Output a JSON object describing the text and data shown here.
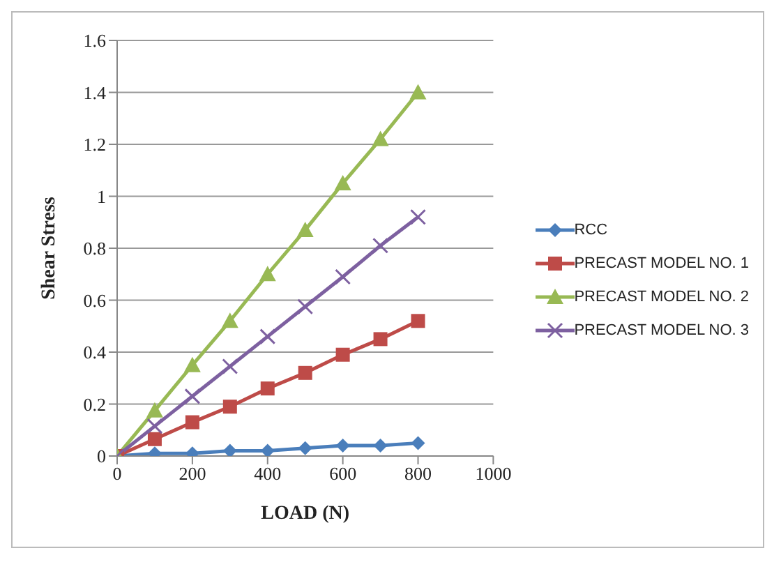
{
  "chart_data": {
    "type": "line",
    "xlabel": "LOAD (N)",
    "ylabel": "Shear Stress",
    "x": [
      0,
      100,
      200,
      300,
      400,
      500,
      600,
      700,
      800
    ],
    "series": [
      {
        "name": "RCC",
        "color": "#4a7ebb",
        "marker": "diamond",
        "values": [
          0,
          0.01,
          0.01,
          0.02,
          0.02,
          0.03,
          0.04,
          0.04,
          0.05
        ]
      },
      {
        "name": "PRECAST MODEL NO. 1",
        "color": "#be4b48",
        "marker": "square",
        "values": [
          0,
          0.065,
          0.13,
          0.19,
          0.26,
          0.32,
          0.39,
          0.45,
          0.52
        ]
      },
      {
        "name": "PRECAST MODEL NO. 2",
        "color": "#98b954",
        "marker": "triangle",
        "values": [
          0,
          0.175,
          0.35,
          0.52,
          0.7,
          0.87,
          1.05,
          1.22,
          1.4
        ]
      },
      {
        "name": "PRECAST MODEL NO. 3",
        "color": "#7d60a0",
        "marker": "cross",
        "values": [
          0,
          0.115,
          0.23,
          0.345,
          0.46,
          0.575,
          0.69,
          0.81,
          0.92
        ]
      }
    ],
    "xlim": [
      0,
      1000
    ],
    "xticks": [
      0,
      200,
      400,
      600,
      800,
      1000
    ],
    "ylim": [
      0,
      1.6
    ],
    "yticks": [
      0,
      0.2,
      0.4,
      0.6,
      0.8,
      1,
      1.2,
      1.4,
      1.6
    ],
    "grid": "y",
    "legend": "right"
  }
}
